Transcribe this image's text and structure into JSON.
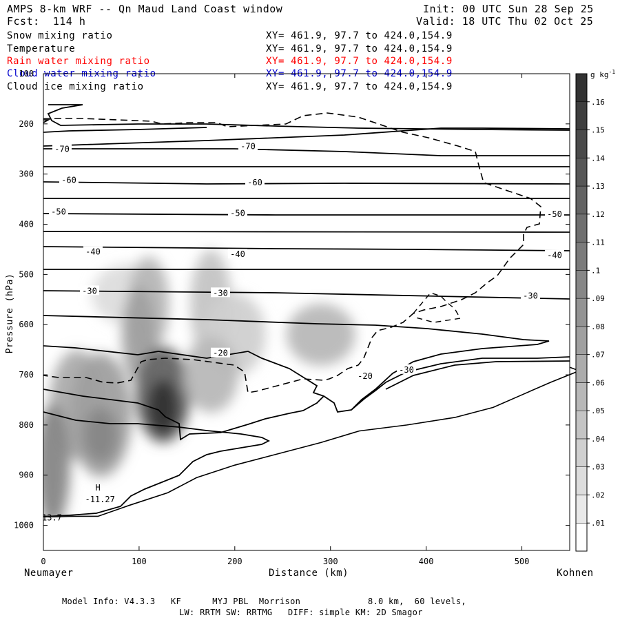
{
  "header": {
    "title": "AMPS 8-km WRF -- Qn Maud Land Coast window",
    "forecast": "Fcst:  114 h",
    "init": "Init: 00 UTC Sun 28 Sep 25",
    "valid": "Valid: 18 UTC Thu 02 Oct 25"
  },
  "fields": [
    {
      "name": "Snow mixing ratio",
      "xy": "XY= 461.9, 97.7 to 424.0,154.9",
      "color": "#000000"
    },
    {
      "name": "Temperature",
      "xy": "XY= 461.9, 97.7 to 424.0,154.9",
      "color": "#000000"
    },
    {
      "name": "Rain water mixing ratio",
      "xy": "XY= 461.9, 97.7 to 424.0,154.9",
      "color": "#ff0000"
    },
    {
      "name": "Cloud water mixing ratio",
      "xy": "XY= 461.9, 97.7 to 424.0,154.9",
      "color": "#0000cc"
    },
    {
      "name": "Cloud ice mixing ratio",
      "xy": "XY= 461.9, 97.7 to 424.0,154.9",
      "color": "#000000"
    }
  ],
  "footer": {
    "line1": "Model Info: V4.3.3   KF      MYJ PBL  Morrison             8.0 km,  60 levels,",
    "line2": "LW: RRTM SW: RRTMG   DIFF: simple KM: 2D Smagor"
  },
  "chart_data": {
    "type": "contour",
    "xlabel": "Distance (km)",
    "ylabel": "Pressure (hPa)",
    "xlim": [
      0,
      550
    ],
    "ylim": [
      1050,
      100
    ],
    "x_ticks": [
      0,
      100,
      200,
      300,
      400,
      500
    ],
    "y_ticks": [
      100,
      200,
      300,
      400,
      500,
      600,
      700,
      800,
      900,
      1000
    ],
    "left_endpoint": "Neumayer",
    "right_endpoint": "Kohnen",
    "colorbar": {
      "units": "g kg",
      "units_exp": "-1",
      "levels": [
        0.01,
        0.02,
        0.03,
        0.04,
        0.05,
        0.06,
        0.07,
        0.08,
        0.09,
        0.1,
        0.11,
        0.12,
        0.13,
        0.14,
        0.15,
        0.16
      ],
      "labels": [
        ".01",
        ".02",
        ".03",
        ".04",
        ".05",
        ".06",
        ".07",
        ".08",
        ".09",
        ".1",
        ".11",
        ".12",
        ".13",
        ".14",
        ".15",
        ".16"
      ]
    },
    "temperature_contours": [
      {
        "value": -70,
        "label": "-70",
        "pressure": 250
      },
      {
        "value": -60,
        "label": "-60",
        "pressure": 312
      },
      {
        "value": -50,
        "label": "-50",
        "pressure": 375
      },
      {
        "value": -40,
        "label": "-40",
        "pressure": 455
      },
      {
        "value": -30,
        "label": "-30",
        "pressure": 535
      },
      {
        "value": -20,
        "label": "-20",
        "pressure": 690
      }
    ],
    "high_marker": {
      "label": "H",
      "value": "-11.27",
      "x": 57,
      "p": 950
    },
    "corner_value": {
      "label": "13.7",
      "x": 0,
      "p": 985
    },
    "snow_maxima": [
      {
        "x": 125,
        "p": 760,
        "value": 0.16
      },
      {
        "x": 100,
        "p": 560,
        "value": 0.08
      },
      {
        "x": 55,
        "p": 810,
        "value": 0.09
      },
      {
        "x": 10,
        "p": 900,
        "value": 0.1
      },
      {
        "x": 175,
        "p": 560,
        "value": 0.05
      },
      {
        "x": 290,
        "p": 620,
        "value": 0.05
      }
    ]
  }
}
